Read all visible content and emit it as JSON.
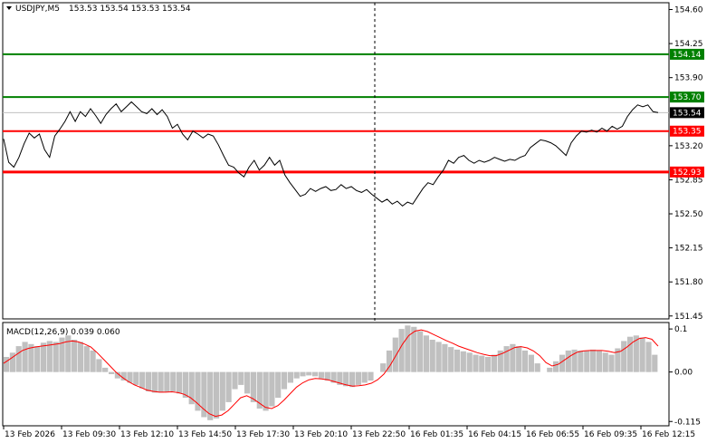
{
  "main_header": {
    "triangle": "down-triangle-icon",
    "symbol_tf": "USDJPY,M5",
    "ohlc": "153.53 153.54 153.53 153.54"
  },
  "macd_header": {
    "label": "MACD(12,26,9) 0.039 0.060"
  },
  "colors": {
    "price_line": "#000000",
    "green_level": "#008000",
    "red_level": "#ff0000",
    "macd_hist": "#c0c0c0",
    "macd_signal": "#ff0000",
    "current_tag_bg": "#000000"
  },
  "chart_data": [
    {
      "type": "line",
      "title": "USDJPY,M5",
      "y_axis_ticks": [
        "154.60",
        "154.25",
        "153.90",
        "153.20",
        "152.85",
        "152.50",
        "152.15",
        "151.80",
        "151.45"
      ],
      "ylim": [
        151.42,
        154.67
      ],
      "x_tick_labels": [
        "13 Feb 2026",
        "13 Feb 09:30",
        "13 Feb 12:10",
        "13 Feb 14:50",
        "13 Feb 17:30",
        "13 Feb 20:10",
        "13 Feb 22:50",
        "16 Feb 01:35",
        "16 Feb 04:15",
        "16 Feb 06:55",
        "16 Feb 09:35",
        "16 Feb 12:15"
      ],
      "series": [
        {
          "values": [
            153.27,
            153.03,
            152.98,
            153.08,
            153.22,
            153.33,
            153.28,
            153.32,
            153.16,
            153.08,
            153.3,
            153.37,
            153.45,
            153.55,
            153.45,
            153.55,
            153.5,
            153.58,
            153.51,
            153.43,
            153.52,
            153.58,
            153.63,
            153.55,
            153.6,
            153.65,
            153.6,
            153.55,
            153.53,
            153.58,
            153.52,
            153.57,
            153.5,
            153.38,
            153.42,
            153.32,
            153.26,
            153.35,
            153.32,
            153.28,
            153.32,
            153.3,
            153.21,
            153.1,
            153.0,
            152.98,
            152.92,
            152.88,
            152.98,
            153.05,
            152.95,
            153.0,
            153.08,
            153.0,
            153.05,
            152.9,
            152.82,
            152.75,
            152.68,
            152.7,
            152.76,
            152.73,
            152.76,
            152.78,
            152.74,
            152.75,
            152.8,
            152.76,
            152.78,
            152.74,
            152.72,
            152.75,
            152.7,
            152.66,
            152.62,
            152.65,
            152.6,
            152.63,
            152.58,
            152.62,
            152.6,
            152.68,
            152.76,
            152.82,
            152.8,
            152.88,
            152.95,
            153.05,
            153.02,
            153.08,
            153.1,
            153.05,
            153.02,
            153.05,
            153.03,
            153.05,
            153.08,
            153.06,
            153.04,
            153.06,
            153.05,
            153.08,
            153.1,
            153.18,
            153.22,
            153.26,
            153.25,
            153.23,
            153.2,
            153.15,
            153.1,
            153.23,
            153.3,
            153.35,
            153.34,
            153.36,
            153.34,
            153.38,
            153.35,
            153.4,
            153.37,
            153.4,
            153.5,
            153.57,
            153.62,
            153.6,
            153.62,
            153.55,
            153.54
          ],
          "x_start_label": "13 Feb 2026",
          "x_end_label": "16 Feb 12:15"
        }
      ],
      "levels": [
        {
          "value": 154.14,
          "label": "154.14",
          "color": "#008000"
        },
        {
          "value": 153.7,
          "label": "153.70",
          "color": "#008000"
        },
        {
          "value": 153.35,
          "label": "153.35",
          "color": "#ff0000"
        },
        {
          "value": 152.93,
          "label": "152.93",
          "color": "#ff0000"
        }
      ],
      "current_price": {
        "value": 153.54,
        "label": "153.54"
      },
      "vertical_marker_label": "13 Feb 22:50",
      "grid": false
    },
    {
      "type": "bar",
      "title": "MACD(12,26,9) 0.039 0.060",
      "y_axis_ticks": [
        "0.1",
        "0.00",
        "-0.115"
      ],
      "ylim": [
        -0.125,
        0.115
      ],
      "series": [
        {
          "name": "MACD",
          "values": [
            0.035,
            0.045,
            0.06,
            0.07,
            0.065,
            0.06,
            0.068,
            0.072,
            0.07,
            0.08,
            0.085,
            0.075,
            0.07,
            0.06,
            0.05,
            0.03,
            0.01,
            -0.005,
            -0.015,
            -0.02,
            -0.025,
            -0.03,
            -0.038,
            -0.045,
            -0.048,
            -0.048,
            -0.046,
            -0.045,
            -0.05,
            -0.06,
            -0.075,
            -0.09,
            -0.105,
            -0.112,
            -0.108,
            -0.09,
            -0.07,
            -0.04,
            -0.03,
            -0.05,
            -0.07,
            -0.085,
            -0.09,
            -0.08,
            -0.06,
            -0.04,
            -0.025,
            -0.015,
            -0.01,
            -0.008,
            -0.01,
            -0.015,
            -0.02,
            -0.025,
            -0.03,
            -0.033,
            -0.035,
            -0.03,
            -0.025,
            -0.02,
            0.0,
            0.02,
            0.05,
            0.08,
            0.1,
            0.108,
            0.105,
            0.095,
            0.085,
            0.075,
            0.07,
            0.065,
            0.058,
            0.052,
            0.048,
            0.045,
            0.04,
            0.038,
            0.035,
            0.04,
            0.05,
            0.06,
            0.065,
            0.06,
            0.05,
            0.04,
            0.02,
            0.0,
            0.01,
            0.025,
            0.04,
            0.05,
            0.052,
            0.05,
            0.05,
            0.052,
            0.05,
            0.045,
            0.04,
            0.055,
            0.072,
            0.082,
            0.085,
            0.08,
            0.07,
            0.04
          ],
          "x_start_label": "13 Feb 2026",
          "x_end_label": "16 Feb 12:15"
        },
        {
          "name": "Signal",
          "values": [
            0.02,
            0.03,
            0.04,
            0.05,
            0.055,
            0.058,
            0.06,
            0.062,
            0.064,
            0.066,
            0.07,
            0.072,
            0.07,
            0.065,
            0.058,
            0.045,
            0.03,
            0.015,
            0.0,
            -0.012,
            -0.022,
            -0.03,
            -0.036,
            -0.042,
            -0.045,
            -0.047,
            -0.047,
            -0.046,
            -0.048,
            -0.052,
            -0.06,
            -0.072,
            -0.085,
            -0.097,
            -0.103,
            -0.1,
            -0.09,
            -0.075,
            -0.06,
            -0.055,
            -0.062,
            -0.072,
            -0.082,
            -0.085,
            -0.078,
            -0.065,
            -0.05,
            -0.035,
            -0.025,
            -0.018,
            -0.015,
            -0.016,
            -0.018,
            -0.022,
            -0.026,
            -0.03,
            -0.033,
            -0.032,
            -0.03,
            -0.026,
            -0.018,
            -0.005,
            0.015,
            0.04,
            0.065,
            0.085,
            0.095,
            0.098,
            0.094,
            0.087,
            0.08,
            0.073,
            0.067,
            0.06,
            0.055,
            0.05,
            0.045,
            0.041,
            0.038,
            0.038,
            0.043,
            0.05,
            0.057,
            0.059,
            0.056,
            0.049,
            0.038,
            0.022,
            0.014,
            0.018,
            0.028,
            0.038,
            0.046,
            0.049,
            0.05,
            0.05,
            0.05,
            0.048,
            0.045,
            0.048,
            0.058,
            0.07,
            0.078,
            0.08,
            0.076,
            0.06
          ]
        }
      ]
    }
  ]
}
